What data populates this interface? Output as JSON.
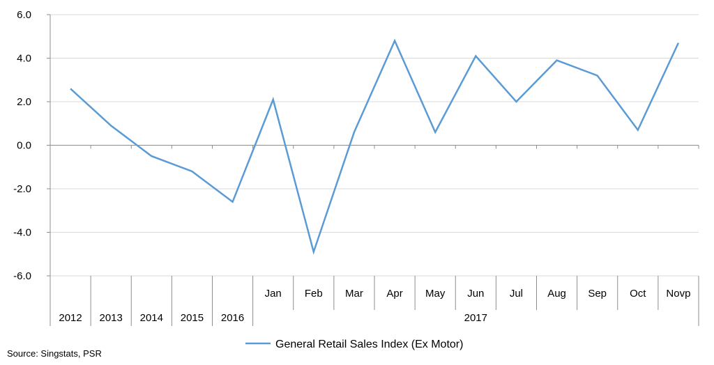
{
  "chart_data": {
    "type": "line",
    "categories": [
      "2012",
      "2013",
      "2014",
      "2015",
      "2016",
      "Jan",
      "Feb",
      "Mar",
      "Apr",
      "May",
      "Jun",
      "Jul",
      "Aug",
      "Sep",
      "Oct",
      "Novp"
    ],
    "group_labels": [
      {
        "label": "2012",
        "span": [
          0,
          0
        ]
      },
      {
        "label": "2013",
        "span": [
          1,
          1
        ]
      },
      {
        "label": "2014",
        "span": [
          2,
          2
        ]
      },
      {
        "label": "2015",
        "span": [
          3,
          3
        ]
      },
      {
        "label": "2016",
        "span": [
          4,
          4
        ]
      },
      {
        "label": "2017",
        "span": [
          5,
          15
        ]
      }
    ],
    "series": [
      {
        "name": "General Retail Sales Index (Ex Motor)",
        "color": "#5B9BD5",
        "values": [
          2.6,
          0.9,
          -0.5,
          -1.2,
          -2.6,
          2.1,
          -4.9,
          0.6,
          4.8,
          0.6,
          4.1,
          2.0,
          3.9,
          3.2,
          0.7,
          4.7
        ]
      }
    ],
    "y_ticks": [
      "6.0",
      "4.0",
      "2.0",
      "0.0",
      "-2.0",
      "-4.0",
      "-6.0"
    ],
    "ylim": [
      -6,
      6
    ],
    "grid": true,
    "legend_position": "bottom",
    "source": "Source: Singstats, PSR"
  }
}
